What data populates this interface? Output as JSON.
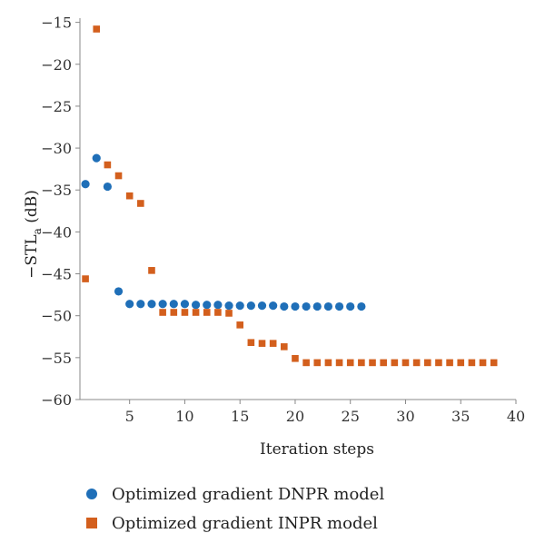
{
  "chart_data": {
    "type": "scatter",
    "xlabel": "Iteration steps",
    "ylabel_main": "−STL",
    "ylabel_sub": "a",
    "ylabel_unit": " (dB)",
    "xlim": [
      0.5,
      40
    ],
    "ylim": [
      -60,
      -14.5
    ],
    "xticks": [
      5,
      10,
      15,
      20,
      25,
      30,
      35,
      40
    ],
    "yticks": [
      -15,
      -20,
      -25,
      -30,
      -35,
      -40,
      -45,
      -50,
      -55,
      -60
    ],
    "grid": false,
    "legend_position": "bottom",
    "series": [
      {
        "name": "Optimized gradient DNPR model",
        "marker": "circle",
        "color": "#1f6fb8",
        "x": [
          1,
          2,
          3,
          4,
          5,
          6,
          7,
          8,
          9,
          10,
          11,
          12,
          13,
          14,
          15,
          16,
          17,
          18,
          19,
          20,
          21,
          22,
          23,
          24,
          25,
          26
        ],
        "y": [
          -34.3,
          -31.2,
          -34.6,
          -47.1,
          -48.6,
          -48.6,
          -48.6,
          -48.6,
          -48.6,
          -48.6,
          -48.7,
          -48.7,
          -48.7,
          -48.8,
          -48.8,
          -48.8,
          -48.8,
          -48.8,
          -48.9,
          -48.9,
          -48.9,
          -48.9,
          -48.9,
          -48.9,
          -48.9,
          -48.9
        ]
      },
      {
        "name": "Optimized gradient INPR model",
        "marker": "square",
        "color": "#d35f1d",
        "x": [
          1,
          2,
          3,
          4,
          5,
          6,
          7,
          8,
          9,
          10,
          11,
          12,
          13,
          14,
          15,
          16,
          17,
          18,
          19,
          20,
          21,
          22,
          23,
          24,
          25,
          26,
          27,
          28,
          29,
          30,
          31,
          32,
          33,
          34,
          35,
          36,
          37,
          38
        ],
        "y": [
          -45.6,
          -15.8,
          -32.0,
          -33.3,
          -35.7,
          -36.6,
          -44.6,
          -49.6,
          -49.6,
          -49.6,
          -49.6,
          -49.6,
          -49.6,
          -49.7,
          -51.1,
          -53.2,
          -53.3,
          -53.3,
          -53.7,
          -55.1,
          -55.6,
          -55.6,
          -55.6,
          -55.6,
          -55.6,
          -55.6,
          -55.6,
          -55.6,
          -55.6,
          -55.6,
          -55.6,
          -55.6,
          -55.6,
          -55.6,
          -55.6,
          -55.6,
          -55.6,
          -55.6
        ]
      }
    ]
  }
}
